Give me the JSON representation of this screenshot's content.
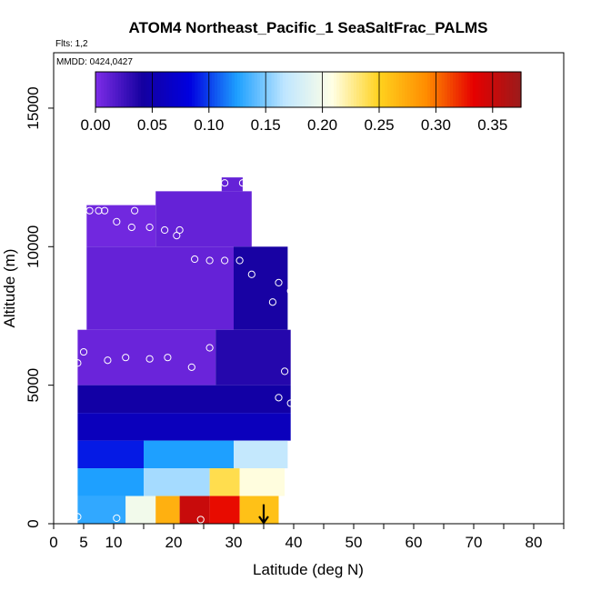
{
  "chart_data": {
    "type": "heatmap",
    "title": "ATOM4 Northeast_Pacific_1 SeaSaltFrac_PALMS",
    "subtitle_flights": "Flts: 1,2",
    "subtitle_dates": "MMDD: 0424,0427",
    "xlabel": "Latitude (deg N)",
    "ylabel": "Altitude (m)",
    "xlim": [
      0,
      85
    ],
    "ylim": [
      0,
      17000
    ],
    "x_ticks": [
      0,
      5,
      10,
      20,
      30,
      40,
      50,
      60,
      70,
      80
    ],
    "y_ticks": [
      0,
      5000,
      10000,
      15000
    ],
    "colorbar": {
      "min": 0.0,
      "max": 0.375,
      "ticks": [
        0.0,
        0.05,
        0.1,
        0.15,
        0.2,
        0.25,
        0.3,
        0.35
      ],
      "tick_labels": [
        "0.00",
        "0.05",
        "0.10",
        "0.15",
        "0.20",
        "0.25",
        "0.30",
        "0.35"
      ],
      "colors": [
        "#7e2de8",
        "#1400a0",
        "#0000e0",
        "#1ea0ff",
        "#bfe6ff",
        "#ffffe6",
        "#ffd21e",
        "#ff8c00",
        "#e60000",
        "#9b1b1b"
      ]
    },
    "cells": [
      {
        "lat": [
          5.5,
          17
        ],
        "alt": [
          10000,
          11500
        ],
        "value": 0.005
      },
      {
        "lat": [
          17,
          33
        ],
        "alt": [
          10000,
          12000
        ],
        "value": 0.01
      },
      {
        "lat": [
          28,
          31.5
        ],
        "alt": [
          12000,
          12500
        ],
        "value": 0.01
      },
      {
        "lat": [
          5.5,
          30
        ],
        "alt": [
          7000,
          10000
        ],
        "value": 0.01
      },
      {
        "lat": [
          30,
          39
        ],
        "alt": [
          7000,
          10000
        ],
        "value": 0.04
      },
      {
        "lat": [
          4,
          27
        ],
        "alt": [
          5000,
          7000
        ],
        "value": 0.008
      },
      {
        "lat": [
          27,
          39.5
        ],
        "alt": [
          5000,
          7000
        ],
        "value": 0.035
      },
      {
        "lat": [
          4,
          39.5
        ],
        "alt": [
          4000,
          5000
        ],
        "value": 0.045
      },
      {
        "lat": [
          4,
          39.5
        ],
        "alt": [
          3000,
          4000
        ],
        "value": 0.06
      },
      {
        "lat": [
          4,
          15
        ],
        "alt": [
          2000,
          3000
        ],
        "value": 0.09
      },
      {
        "lat": [
          15,
          30
        ],
        "alt": [
          2000,
          3000
        ],
        "value": 0.125
      },
      {
        "lat": [
          30,
          39
        ],
        "alt": [
          2000,
          3000
        ],
        "value": 0.17
      },
      {
        "lat": [
          4,
          15
        ],
        "alt": [
          1000,
          2000
        ],
        "value": 0.125
      },
      {
        "lat": [
          15,
          26
        ],
        "alt": [
          1000,
          2000
        ],
        "value": 0.16
      },
      {
        "lat": [
          26,
          31
        ],
        "alt": [
          1000,
          2000
        ],
        "value": 0.24
      },
      {
        "lat": [
          31,
          38.5
        ],
        "alt": [
          1000,
          2000
        ],
        "value": 0.21
      },
      {
        "lat": [
          4,
          12
        ],
        "alt": [
          0,
          1000
        ],
        "value": 0.13
      },
      {
        "lat": [
          12,
          17
        ],
        "alt": [
          0,
          1000
        ],
        "value": 0.2
      },
      {
        "lat": [
          17,
          21
        ],
        "alt": [
          0,
          1000
        ],
        "value": 0.27
      },
      {
        "lat": [
          21,
          26
        ],
        "alt": [
          0,
          1000
        ],
        "value": 0.35
      },
      {
        "lat": [
          26,
          31
        ],
        "alt": [
          0,
          1000
        ],
        "value": 0.33
      },
      {
        "lat": [
          31,
          37.5
        ],
        "alt": [
          0,
          1000
        ],
        "value": 0.26
      }
    ],
    "sample_points": [
      {
        "lat": 6,
        "alt": 11300
      },
      {
        "lat": 7.5,
        "alt": 11300
      },
      {
        "lat": 8.5,
        "alt": 11300
      },
      {
        "lat": 10.5,
        "alt": 10900
      },
      {
        "lat": 13.5,
        "alt": 11300
      },
      {
        "lat": 13,
        "alt": 10700
      },
      {
        "lat": 16,
        "alt": 10700
      },
      {
        "lat": 18.5,
        "alt": 10600
      },
      {
        "lat": 21,
        "alt": 10600
      },
      {
        "lat": 20.5,
        "alt": 10400
      },
      {
        "lat": 28.5,
        "alt": 12300
      },
      {
        "lat": 31.5,
        "alt": 12300
      },
      {
        "lat": 23.5,
        "alt": 9550
      },
      {
        "lat": 26,
        "alt": 9500
      },
      {
        "lat": 28.5,
        "alt": 9500
      },
      {
        "lat": 31,
        "alt": 9500
      },
      {
        "lat": 33,
        "alt": 9000
      },
      {
        "lat": 37.5,
        "alt": 8700
      },
      {
        "lat": 39.5,
        "alt": 8400
      },
      {
        "lat": 36.5,
        "alt": 8000
      },
      {
        "lat": 5,
        "alt": 6200
      },
      {
        "lat": 4,
        "alt": 5800
      },
      {
        "lat": 9,
        "alt": 5900
      },
      {
        "lat": 12,
        "alt": 6000
      },
      {
        "lat": 16,
        "alt": 5950
      },
      {
        "lat": 19,
        "alt": 6000
      },
      {
        "lat": 23,
        "alt": 5650
      },
      {
        "lat": 26,
        "alt": 6350
      },
      {
        "lat": 38.5,
        "alt": 5500
      },
      {
        "lat": 37.5,
        "alt": 4550
      },
      {
        "lat": 39.5,
        "alt": 4350
      },
      {
        "lat": 4,
        "alt": 250
      },
      {
        "lat": 10.5,
        "alt": 200
      },
      {
        "lat": 24.5,
        "alt": 150
      }
    ],
    "arrow_marker": {
      "lat": 35,
      "alt_top": 700,
      "alt_bottom": 0
    }
  }
}
